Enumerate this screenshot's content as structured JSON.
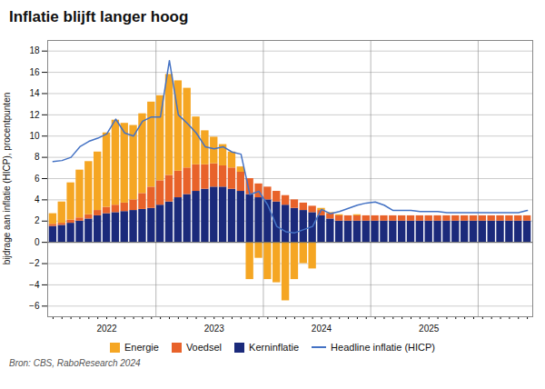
{
  "chart_data": {
    "type": "bar",
    "title": "Inflatie blijft langer hoog",
    "ylabel": "bijdrage aan inflatie (HICP), procentpunten",
    "source": "Bron: CBS, RaboResearch 2024",
    "stacked": true,
    "grid": true,
    "legend": "bottom",
    "ylim": [
      -7,
      19
    ],
    "yticks": [
      -6,
      -4,
      -2,
      0,
      2,
      4,
      6,
      8,
      10,
      12,
      14,
      16,
      18
    ],
    "categories": [
      null,
      null,
      null,
      null,
      null,
      null,
      "2022",
      null,
      null,
      null,
      null,
      null,
      null,
      null,
      null,
      null,
      null,
      null,
      "2023",
      null,
      null,
      null,
      null,
      null,
      null,
      null,
      null,
      null,
      null,
      null,
      "2024",
      null,
      null,
      null,
      null,
      null,
      null,
      null,
      null,
      null,
      null,
      null,
      "2025",
      null,
      null,
      null,
      null,
      null,
      null,
      null,
      null,
      null,
      null,
      null
    ],
    "series": [
      {
        "name": "Energie",
        "type": "bar",
        "color": "#F5A623",
        "values": [
          1.0,
          2.0,
          3.5,
          4.5,
          5.0,
          5.5,
          7.0,
          8.0,
          7.5,
          7.0,
          7.5,
          8.0,
          8.0,
          9.5,
          8.5,
          7.5,
          4.5,
          3.2,
          2.5,
          2.0,
          1.5,
          0.5,
          -3.5,
          -1.5,
          -3.5,
          -3.8,
          -5.5,
          -3.5,
          -2.0,
          -2.5,
          0.2,
          0.1,
          0.1,
          0.0,
          0.1,
          0.0,
          0.0,
          0.0,
          0.0,
          0.0,
          0.0,
          0.0,
          0.0,
          0.0,
          0.0,
          0.0,
          0.0,
          0.0,
          0.0,
          0.0,
          0.0,
          0.0,
          0.0,
          0.0
        ]
      },
      {
        "name": "Voedsel",
        "type": "bar",
        "color": "#E8622A",
        "values": [
          0.2,
          0.2,
          0.3,
          0.3,
          0.4,
          0.5,
          0.6,
          0.7,
          0.8,
          1.0,
          1.5,
          2.0,
          2.3,
          2.5,
          2.5,
          2.5,
          2.5,
          2.3,
          2.2,
          2.0,
          2.0,
          1.8,
          1.5,
          1.3,
          1.2,
          1.0,
          0.9,
          0.8,
          0.7,
          0.6,
          0.5,
          0.5,
          0.5,
          0.5,
          0.5,
          0.5,
          0.5,
          0.5,
          0.5,
          0.5,
          0.5,
          0.5,
          0.5,
          0.5,
          0.5,
          0.5,
          0.5,
          0.5,
          0.5,
          0.5,
          0.5,
          0.5,
          0.5,
          0.5
        ]
      },
      {
        "name": "Kerninflatie",
        "type": "bar",
        "color": "#1B2A7B",
        "values": [
          1.5,
          1.6,
          1.8,
          2.0,
          2.2,
          2.5,
          2.7,
          2.8,
          2.9,
          3.0,
          3.1,
          3.2,
          3.5,
          3.8,
          4.2,
          4.5,
          4.8,
          5.0,
          5.2,
          5.2,
          5.0,
          4.8,
          4.5,
          4.2,
          4.0,
          3.8,
          3.5,
          3.2,
          3.0,
          2.8,
          2.5,
          2.2,
          2.0,
          2.0,
          2.0,
          2.0,
          2.0,
          2.0,
          2.0,
          2.0,
          2.0,
          2.0,
          2.0,
          2.0,
          2.0,
          2.0,
          2.0,
          2.0,
          2.0,
          2.0,
          2.0,
          2.0,
          2.0,
          2.0
        ]
      },
      {
        "name": "Headline inflatie (HICP)",
        "type": "line",
        "color": "#4472C4",
        "values": [
          7.6,
          7.7,
          8.0,
          9.0,
          9.5,
          9.8,
          10.2,
          11.6,
          10.3,
          10.0,
          11.4,
          11.8,
          11.8,
          17.1,
          12.0,
          11.2,
          10.3,
          9.0,
          8.8,
          9.0,
          8.5,
          8.3,
          4.5,
          4.8,
          3.5,
          1.5,
          1.0,
          0.9,
          1.2,
          1.5,
          3.1,
          2.7,
          2.9,
          3.2,
          3.5,
          3.7,
          3.8,
          3.5,
          3.0,
          3.0,
          3.0,
          2.9,
          2.9,
          2.9,
          2.8,
          2.8,
          2.8,
          2.8,
          2.8,
          2.8,
          2.8,
          2.8,
          2.8,
          3.0
        ]
      }
    ]
  }
}
